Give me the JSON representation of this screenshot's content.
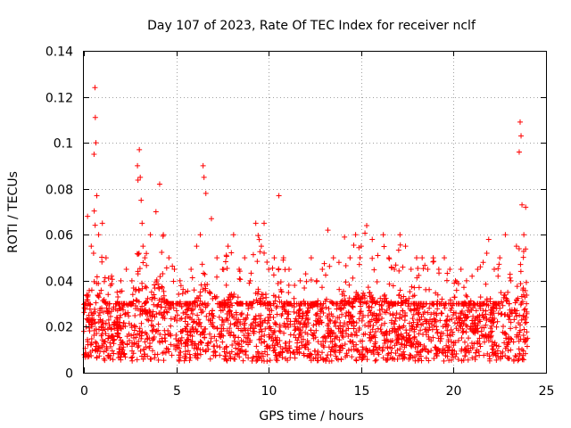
{
  "chart_data": {
    "type": "scatter",
    "title": "Day 107 of 2023, Rate Of TEC Index for receiver nclf",
    "xlabel": "GPS time / hours",
    "ylabel": "ROTI / TECUs",
    "xlim": [
      0,
      25
    ],
    "ylim": [
      0,
      0.14
    ],
    "xticks": [
      0,
      5,
      10,
      15,
      20,
      25
    ],
    "xtick_labels": [
      "0",
      "5",
      "10",
      "15",
      "20",
      "25"
    ],
    "yticks": [
      0,
      0.02,
      0.04,
      0.06,
      0.08,
      0.1,
      0.12,
      0.14
    ],
    "ytick_labels": [
      "0",
      "0.02",
      "0.04",
      "0.06",
      "0.08",
      "0.1",
      "0.12",
      "0.14"
    ],
    "grid": true,
    "marker": "+",
    "series": [
      {
        "name": "ROTI",
        "color": "#ff0000",
        "x": [
          0.0,
          0.2,
          0.4,
          0.55,
          0.6,
          0.62,
          0.65,
          0.7,
          0.8,
          1.0,
          1.2,
          1.5,
          1.8,
          2.0,
          2.3,
          2.6,
          2.9,
          3.0,
          3.05,
          3.1,
          3.15,
          3.2,
          3.3,
          3.6,
          3.9,
          4.1,
          4.3,
          4.6,
          4.9,
          5.2,
          5.5,
          5.8,
          6.1,
          6.3,
          6.45,
          6.5,
          6.6,
          6.9,
          7.2,
          7.5,
          7.8,
          8.1,
          8.4,
          8.7,
          9.0,
          9.3,
          9.6,
          9.75,
          10.0,
          10.3,
          10.55,
          10.8,
          11.1,
          11.4,
          11.7,
          12.0,
          12.3,
          12.6,
          12.9,
          13.2,
          13.5,
          13.8,
          14.1,
          14.4,
          14.7,
          15.0,
          15.3,
          15.6,
          15.9,
          16.2,
          16.5,
          16.8,
          17.1,
          17.4,
          17.7,
          18.0,
          18.3,
          18.6,
          18.9,
          19.2,
          19.5,
          19.8,
          20.1,
          20.4,
          20.7,
          21.0,
          21.3,
          21.6,
          21.9,
          22.2,
          22.5,
          22.8,
          23.1,
          23.4,
          23.55,
          23.6,
          23.65,
          23.7,
          23.8,
          23.9,
          24.0
        ],
        "y": [
          0.018,
          0.068,
          0.055,
          0.095,
          0.124,
          0.111,
          0.1,
          0.077,
          0.06,
          0.065,
          0.05,
          0.042,
          0.035,
          0.04,
          0.045,
          0.04,
          0.09,
          0.097,
          0.085,
          0.075,
          0.065,
          0.055,
          0.05,
          0.06,
          0.07,
          0.082,
          0.06,
          0.05,
          0.045,
          0.04,
          0.035,
          0.045,
          0.055,
          0.06,
          0.09,
          0.085,
          0.078,
          0.067,
          0.05,
          0.045,
          0.055,
          0.06,
          0.045,
          0.05,
          0.04,
          0.065,
          0.055,
          0.065,
          0.045,
          0.05,
          0.077,
          0.05,
          0.045,
          0.038,
          0.04,
          0.043,
          0.05,
          0.04,
          0.045,
          0.062,
          0.05,
          0.048,
          0.059,
          0.05,
          0.06,
          0.055,
          0.064,
          0.058,
          0.051,
          0.06,
          0.05,
          0.045,
          0.06,
          0.055,
          0.045,
          0.05,
          0.05,
          0.045,
          0.05,
          0.045,
          0.05,
          0.045,
          0.04,
          0.045,
          0.04,
          0.042,
          0.045,
          0.048,
          0.058,
          0.045,
          0.05,
          0.06,
          0.04,
          0.055,
          0.096,
          0.109,
          0.103,
          0.073,
          0.06,
          0.072,
          0.015
        ],
        "baseline_range": [
          0.005,
          0.03
        ]
      }
    ]
  }
}
